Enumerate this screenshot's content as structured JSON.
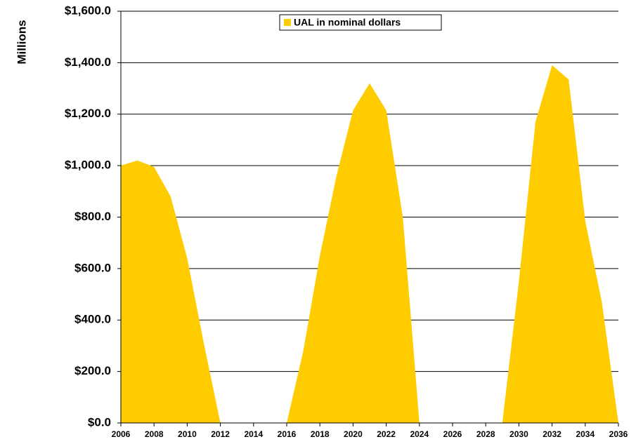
{
  "chart_data": {
    "type": "area",
    "y_label": "Millions",
    "x": [
      2006,
      2007,
      2008,
      2009,
      2010,
      2011,
      2012,
      2013,
      2014,
      2015,
      2016,
      2017,
      2018,
      2019,
      2020,
      2021,
      2022,
      2023,
      2024,
      2025,
      2026,
      2027,
      2028,
      2029,
      2030,
      2031,
      2032,
      2033,
      2034,
      2035,
      2036
    ],
    "series": [
      {
        "name": "UAL in nominal dollars",
        "color": "#FFCC00",
        "values": [
          1000,
          1020,
          995,
          880,
          640,
          310,
          0,
          0,
          0,
          0,
          0,
          280,
          650,
          960,
          1215,
          1320,
          1215,
          800,
          0,
          0,
          0,
          0,
          0,
          0,
          550,
          1170,
          1390,
          1335,
          785,
          470,
          0
        ]
      }
    ],
    "xlim": [
      2006,
      2036
    ],
    "xticks": [
      2006,
      2008,
      2010,
      2012,
      2014,
      2016,
      2018,
      2020,
      2022,
      2024,
      2026,
      2028,
      2030,
      2032,
      2034,
      2036
    ],
    "ylim": [
      0,
      1600
    ],
    "yticks": [
      {
        "value": 0,
        "label": "$0.0"
      },
      {
        "value": 200,
        "label": "$200.0"
      },
      {
        "value": 400,
        "label": "$400.0"
      },
      {
        "value": 600,
        "label": "$600.0"
      },
      {
        "value": 800,
        "label": "$800.0"
      },
      {
        "value": 1000,
        "label": "$1,000.0"
      },
      {
        "value": 1200,
        "label": "$1,200.0"
      },
      {
        "value": 1400,
        "label": "$1,400.0"
      },
      {
        "value": 1600,
        "label": "$1,600.0"
      }
    ],
    "grid": true,
    "legend": "top"
  }
}
